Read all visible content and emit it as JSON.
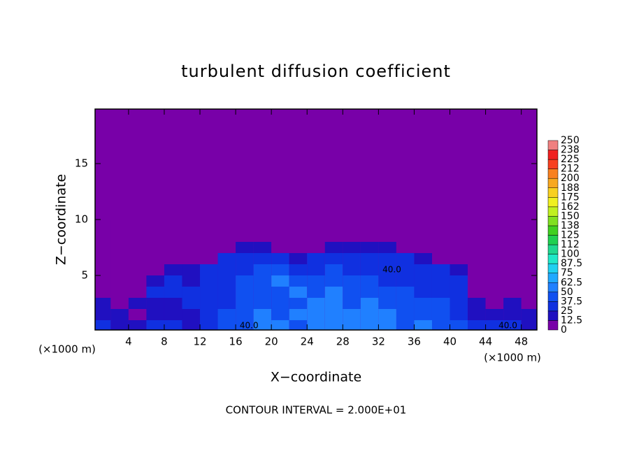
{
  "chart_data": {
    "type": "heatmap",
    "title": "turbulent diffusion coefficient",
    "xlabel": "X−coordinate",
    "ylabel": "Z−coordinate",
    "x_unit_label": "(×1000 m)",
    "footer": "CONTOUR INTERVAL = 2.000E+01",
    "xlim": [
      0.25,
      49.75
    ],
    "ylim": [
      0.125,
      19.875
    ],
    "xticks": [
      4,
      8,
      12,
      16,
      20,
      24,
      28,
      32,
      36,
      40,
      44,
      48
    ],
    "yticks": [
      5,
      10,
      15
    ],
    "x": [
      1,
      3,
      5,
      7,
      9,
      11,
      13,
      15,
      17,
      19,
      21,
      23,
      25,
      27,
      29,
      31,
      33,
      35,
      37,
      39,
      41,
      43,
      45,
      47,
      49
    ],
    "z": [
      0.5,
      1.5,
      2.5,
      3.5,
      4.5,
      5.5,
      6.5,
      7.5,
      8.5,
      9.5
    ],
    "values": [
      [
        25,
        20,
        20,
        25,
        25,
        20,
        30,
        40,
        40,
        50,
        50,
        45,
        50,
        60,
        50,
        55,
        50,
        45,
        50,
        45,
        40,
        30,
        25,
        25,
        20
      ],
      [
        20,
        15,
        10,
        15,
        20,
        20,
        35,
        40,
        45,
        50,
        45,
        50,
        55,
        60,
        55,
        50,
        50,
        45,
        45,
        40,
        35,
        20,
        15,
        20,
        15
      ],
      [
        15,
        10,
        15,
        20,
        20,
        25,
        30,
        30,
        40,
        40,
        40,
        45,
        50,
        55,
        45,
        50,
        45,
        40,
        40,
        40,
        35,
        15,
        10,
        15,
        10
      ],
      [
        10,
        5,
        10,
        25,
        25,
        25,
        30,
        35,
        40,
        45,
        45,
        50,
        45,
        50,
        40,
        45,
        40,
        40,
        35,
        35,
        30,
        10,
        5,
        10,
        5
      ],
      [
        5,
        5,
        5,
        20,
        25,
        20,
        25,
        35,
        40,
        40,
        50,
        45,
        40,
        45,
        40,
        40,
        35,
        35,
        35,
        30,
        25,
        5,
        5,
        5,
        5
      ],
      [
        0,
        0,
        5,
        10,
        15,
        15,
        25,
        35,
        35,
        40,
        45,
        35,
        35,
        40,
        35,
        35,
        35,
        30,
        30,
        25,
        20,
        0,
        0,
        0,
        0
      ],
      [
        0,
        0,
        0,
        0,
        0,
        5,
        10,
        25,
        30,
        35,
        30,
        15,
        25,
        30,
        30,
        30,
        30,
        25,
        20,
        10,
        5,
        0,
        0,
        0,
        0
      ],
      [
        0,
        0,
        0,
        0,
        0,
        0,
        0,
        5,
        15,
        20,
        10,
        0,
        5,
        15,
        20,
        15,
        15,
        5,
        0,
        0,
        0,
        0,
        0,
        0,
        0
      ],
      [
        0,
        0,
        0,
        0,
        0,
        0,
        0,
        0,
        0,
        0,
        0,
        0,
        0,
        5,
        10,
        10,
        5,
        0,
        0,
        0,
        0,
        0,
        0,
        0,
        0
      ],
      [
        0,
        0,
        0,
        0,
        0,
        0,
        0,
        0,
        0,
        0,
        0,
        0,
        0,
        0,
        0,
        5,
        0,
        0,
        0,
        0,
        0,
        0,
        0,
        0,
        0
      ]
    ],
    "annotations": [
      {
        "text": "40.0",
        "x": 17.5,
        "z": 0.5
      },
      {
        "text": "40.0",
        "x": 33.5,
        "z": 5.5
      },
      {
        "text": "40.0",
        "x": 46.5,
        "z": 0.5
      }
    ],
    "colorbar": {
      "levels": [
        0,
        12.5,
        25,
        37.5,
        50,
        62.5,
        75,
        87.5,
        100,
        {
          "value": 112.5,
          "label": "112"
        },
        125,
        {
          "value": 137.5,
          "label": "138"
        },
        150,
        {
          "value": 162.5,
          "label": "162"
        },
        175,
        {
          "value": 187.5,
          "label": "188"
        },
        200,
        {
          "value": 212.5,
          "label": "212"
        },
        225,
        {
          "value": 237.5,
          "label": "238"
        },
        250
      ],
      "colors": [
        "#7800a8",
        "#2010c0",
        "#1030e0",
        "#1050f0",
        "#2080ff",
        "#20a8ff",
        "#20d0f0",
        "#20e8c8",
        "#20d890",
        "#20d050",
        "#40d020",
        "#80e020",
        "#c0f020",
        "#f0f020",
        "#f8d020",
        "#f8a820",
        "#f88020",
        "#f84020",
        "#f02020",
        "#f08080"
      ]
    }
  }
}
